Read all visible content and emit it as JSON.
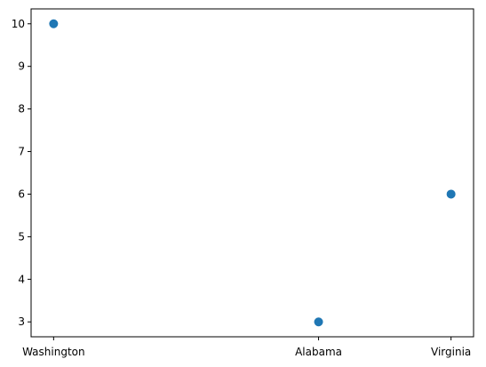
{
  "chart_data": {
    "type": "scatter",
    "title": "",
    "xlabel": "",
    "ylabel": "",
    "x": [
      "Washington",
      "Alabama",
      "Virginia"
    ],
    "x_numeric": [
      2003,
      2005,
      2006
    ],
    "xlim": [
      2002.83,
      2006.17
    ],
    "y": [
      10,
      3,
      6
    ],
    "ylim": [
      2.65,
      10.35
    ],
    "yticks": [
      3,
      4,
      5,
      6,
      7,
      8,
      9,
      10
    ],
    "grid": false,
    "legend": "none",
    "marker_color": "#1f77b4"
  }
}
